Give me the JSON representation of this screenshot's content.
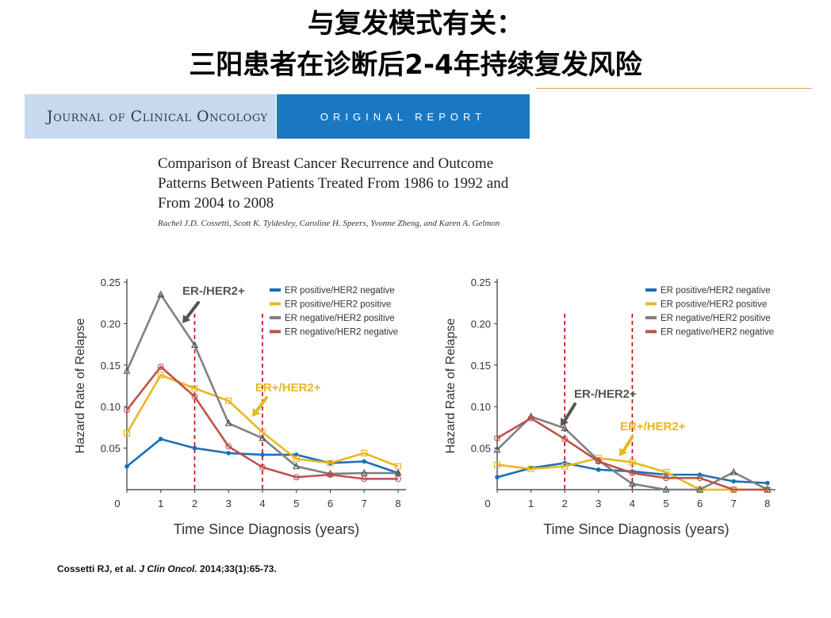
{
  "slide": {
    "title_line1": "与复发模式有关：",
    "title_line2": "三阳患者在诊断后2-4年持续复发风险"
  },
  "banner": {
    "journal": "Journal of Clinical Oncology",
    "report": "ORIGINAL REPORT"
  },
  "paper": {
    "title": "Comparison of Breast Cancer Recurrence and Outcome Patterns Between Patients Treated From 1986 to 1992 and From 2004 to 2008",
    "authors": "Rachel J.D. Cossetti, Scott K. Tyldesley, Caroline H. Speers, Yvonne Zheng, and Karen A. Gelmon"
  },
  "citation": {
    "authors": "Cossetti RJ, et al. ",
    "journal": "J Clin Oncol.",
    "details": " 2014;33(1):65-73."
  },
  "colors": {
    "er_pos_her2_neg": "#1a6fb8",
    "er_pos_her2_pos": "#e8b820",
    "er_neg_her2_pos": "#808080",
    "er_neg_her2_neg": "#c0504d",
    "dashed_line": "#c00000",
    "annotation_gray": "#555555",
    "annotation_yellow": "#e8b820"
  },
  "chart_data": [
    {
      "type": "line",
      "xlabel": "Time Since Diagnosis (years)",
      "ylabel": "Hazard Rate of Relapse",
      "xlim": [
        0,
        8
      ],
      "ylim": [
        0,
        0.25
      ],
      "x_ticks": [
        0,
        1,
        2,
        3,
        4,
        5,
        6,
        7,
        8
      ],
      "y_ticks": [
        "0.05",
        "0.10",
        "0.15",
        "0.20",
        "0.25"
      ],
      "legend_position": "top-right",
      "x": [
        0,
        1,
        2,
        3,
        4,
        5,
        6,
        7,
        8
      ],
      "series": [
        {
          "name": "ER positive/HER2 negative",
          "color_key": "er_pos_her2_neg",
          "marker": "dot",
          "values": [
            0.028,
            0.061,
            0.05,
            0.044,
            0.042,
            0.042,
            0.032,
            0.034,
            0.02
          ]
        },
        {
          "name": "ER positive/HER2 positive",
          "color_key": "er_pos_her2_pos",
          "marker": "square",
          "values": [
            0.068,
            0.138,
            0.122,
            0.107,
            0.069,
            0.037,
            0.032,
            0.044,
            0.028
          ]
        },
        {
          "name": "ER negative/HER2 positive",
          "color_key": "er_neg_her2_pos",
          "marker": "triangle",
          "values": [
            0.143,
            0.235,
            0.174,
            0.08,
            0.062,
            0.028,
            0.019,
            0.02,
            0.02
          ]
        },
        {
          "name": "ER negative/HER2 negative",
          "color_key": "er_neg_her2_neg",
          "marker": "circle",
          "values": [
            0.096,
            0.148,
            0.112,
            0.052,
            0.027,
            0.015,
            0.018,
            0.013,
            0.013
          ]
        }
      ],
      "vlines": [
        2,
        4
      ],
      "annotations": [
        {
          "text": "ER-/HER2+",
          "color_key": "annotation_gray"
        },
        {
          "text": "ER+/HER2+",
          "color_key": "annotation_yellow"
        }
      ]
    },
    {
      "type": "line",
      "xlabel": "Time Since Diagnosis (years)",
      "ylabel": "Hazard Rate of Relapse",
      "xlim": [
        0,
        8
      ],
      "ylim": [
        0,
        0.25
      ],
      "x_ticks": [
        0,
        1,
        2,
        3,
        4,
        5,
        6,
        7,
        8
      ],
      "y_ticks": [
        "0.05",
        "0.10",
        "0.15",
        "0.20",
        "0.25"
      ],
      "legend_position": "top-right",
      "x": [
        0,
        1,
        2,
        3,
        4,
        5,
        6,
        7,
        8
      ],
      "series": [
        {
          "name": "ER positive/HER2 negative",
          "color_key": "er_pos_her2_neg",
          "marker": "dot",
          "values": [
            0.015,
            0.026,
            0.032,
            0.024,
            0.022,
            0.018,
            0.018,
            0.01,
            0.008
          ]
        },
        {
          "name": "ER positive/HER2 positive",
          "color_key": "er_pos_her2_pos",
          "marker": "square",
          "values": [
            0.03,
            0.025,
            0.028,
            0.038,
            0.033,
            0.021,
            0.0,
            0.0,
            0.0
          ]
        },
        {
          "name": "ER negative/HER2 positive",
          "color_key": "er_neg_her2_pos",
          "marker": "triangle",
          "values": [
            0.048,
            0.088,
            0.074,
            0.035,
            0.007,
            0.0,
            0.0,
            0.021,
            0.0
          ]
        },
        {
          "name": "ER negative/HER2 negative",
          "color_key": "er_neg_her2_neg",
          "marker": "circle",
          "values": [
            0.062,
            0.086,
            0.061,
            0.034,
            0.02,
            0.014,
            0.014,
            0.0,
            0.0
          ]
        }
      ],
      "vlines": [
        2,
        4
      ],
      "annotations": [
        {
          "text": "ER-/HER2+",
          "color_key": "annotation_gray"
        },
        {
          "text": "ER+/HER2+",
          "color_key": "annotation_yellow"
        }
      ]
    }
  ]
}
